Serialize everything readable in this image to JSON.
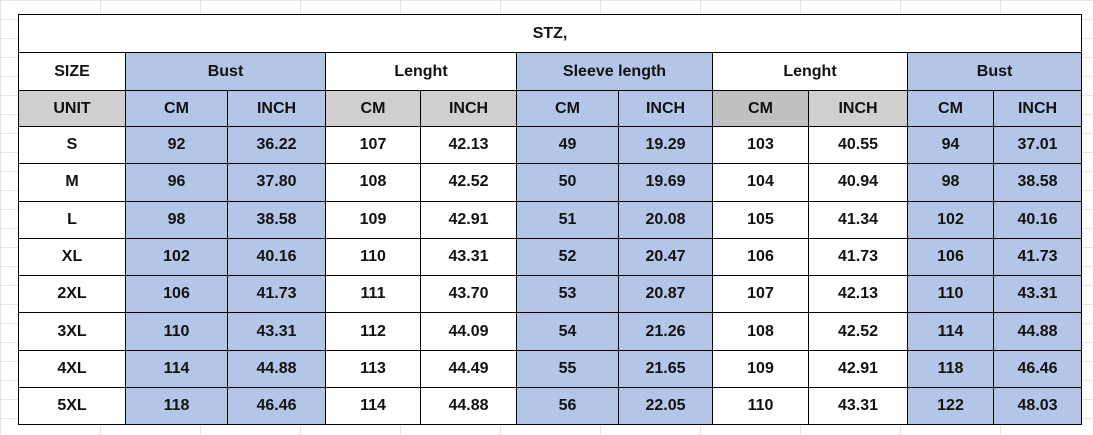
{
  "title": "STZ,",
  "header": {
    "size_label": "SIZE",
    "groups": [
      "Bust",
      "Lenght",
      "Sleeve length",
      "Lenght",
      "Bust"
    ]
  },
  "units": [
    "UNIT",
    "CM",
    "INCH",
    "CM",
    "INCH",
    "CM",
    "INCH",
    "CM",
    "INCH",
    "CM",
    "INCH"
  ],
  "rows": [
    [
      "S",
      "92",
      "36.22",
      "107",
      "42.13",
      "49",
      "19.29",
      "103",
      "40.55",
      "94",
      "37.01"
    ],
    [
      "M",
      "96",
      "37.80",
      "108",
      "42.52",
      "50",
      "19.69",
      "104",
      "40.94",
      "98",
      "38.58"
    ],
    [
      "L",
      "98",
      "38.58",
      "109",
      "42.91",
      "51",
      "20.08",
      "105",
      "41.34",
      "102",
      "40.16"
    ],
    [
      "XL",
      "102",
      "40.16",
      "110",
      "43.31",
      "52",
      "20.47",
      "106",
      "41.73",
      "106",
      "41.73"
    ],
    [
      "2XL",
      "106",
      "41.73",
      "111",
      "43.70",
      "53",
      "20.87",
      "107",
      "42.13",
      "110",
      "43.31"
    ],
    [
      "3XL",
      "110",
      "43.31",
      "112",
      "44.09",
      "54",
      "21.26",
      "108",
      "42.52",
      "114",
      "44.88"
    ],
    [
      "4XL",
      "114",
      "44.88",
      "113",
      "44.49",
      "55",
      "21.65",
      "109",
      "42.91",
      "118",
      "46.46"
    ],
    [
      "5XL",
      "118",
      "46.46",
      "114",
      "44.88",
      "56",
      "22.05",
      "110",
      "43.31",
      "122",
      "48.03"
    ]
  ]
}
